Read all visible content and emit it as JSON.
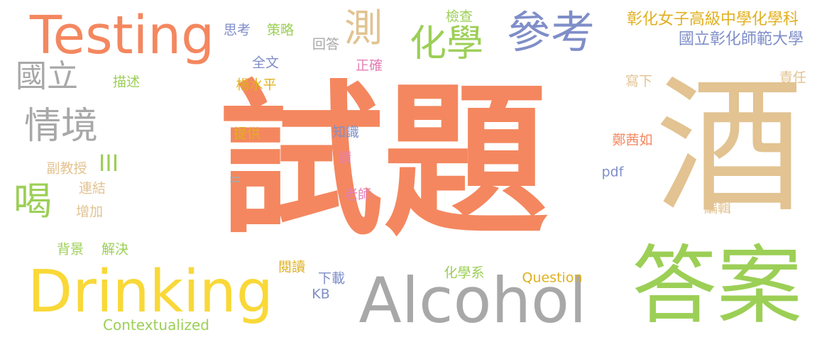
{
  "words": [
    {
      "text": "試題",
      "color": "#f4875f"
    },
    {
      "text": "酒",
      "color": "#e2c391"
    },
    {
      "text": "答案",
      "color": "#9ccf56"
    },
    {
      "text": "Alcohol",
      "color": "#a8a8a8"
    },
    {
      "text": "Drinking",
      "color": "#f9d838"
    },
    {
      "text": "Testing",
      "color": "#f4875f"
    },
    {
      "text": "參考",
      "color": "#7f8ec8"
    },
    {
      "text": "測",
      "color": "#e2c391"
    },
    {
      "text": "化學",
      "color": "#9ccf56"
    },
    {
      "text": "國立",
      "color": "#a8a8a8"
    },
    {
      "text": "情境",
      "color": "#a8a8a8"
    },
    {
      "text": "喝",
      "color": "#9ccf56"
    },
    {
      "text": "III",
      "color": "#9ccf56"
    },
    {
      "text": "彰化女子高級中學化學科",
      "color": "#e0b020"
    },
    {
      "text": "國立彰化師範大學",
      "color": "#7f8ec8"
    },
    {
      "text": "思考",
      "color": "#7f8ec8"
    },
    {
      "text": "策略",
      "color": "#9ccf56"
    },
    {
      "text": "回答",
      "color": "#a8a8a8"
    },
    {
      "text": "檢查",
      "color": "#9ccf56"
    },
    {
      "text": "全文",
      "color": "#7f8ec8"
    },
    {
      "text": "正確",
      "color": "#e57fb4"
    },
    {
      "text": "描述",
      "color": "#9ccf56"
    },
    {
      "text": "楊水平",
      "color": "#e0b020"
    },
    {
      "text": "寫下",
      "color": "#e2c391"
    },
    {
      "text": "責任",
      "color": "#e2c391"
    },
    {
      "text": "提供",
      "color": "#e0b020"
    },
    {
      "text": "知識",
      "color": "#7f8ec8"
    },
    {
      "text": "鄭茜如",
      "color": "#f4875f"
    },
    {
      "text": "請",
      "color": "#e57fb4"
    },
    {
      "text": "副教授",
      "color": "#e2c391"
    },
    {
      "text": "連結",
      "color": "#e2c391"
    },
    {
      "text": "II",
      "color": "#a8a8a8"
    },
    {
      "text": "pdf",
      "color": "#7f8ec8"
    },
    {
      "text": "老師",
      "color": "#e57fb4"
    },
    {
      "text": "增加",
      "color": "#e2c391"
    },
    {
      "text": "編輯",
      "color": "#e2c391"
    },
    {
      "text": "背景",
      "color": "#9ccf56"
    },
    {
      "text": "解決",
      "color": "#9ccf56"
    },
    {
      "text": "閱讀",
      "color": "#e0b020"
    },
    {
      "text": "下載",
      "color": "#7f8ec8"
    },
    {
      "text": "化學系",
      "color": "#9ccf56"
    },
    {
      "text": "Question",
      "color": "#e0b020"
    },
    {
      "text": "KB",
      "color": "#7f8ec8"
    },
    {
      "text": "Contextualized",
      "color": "#9ccf56"
    }
  ]
}
